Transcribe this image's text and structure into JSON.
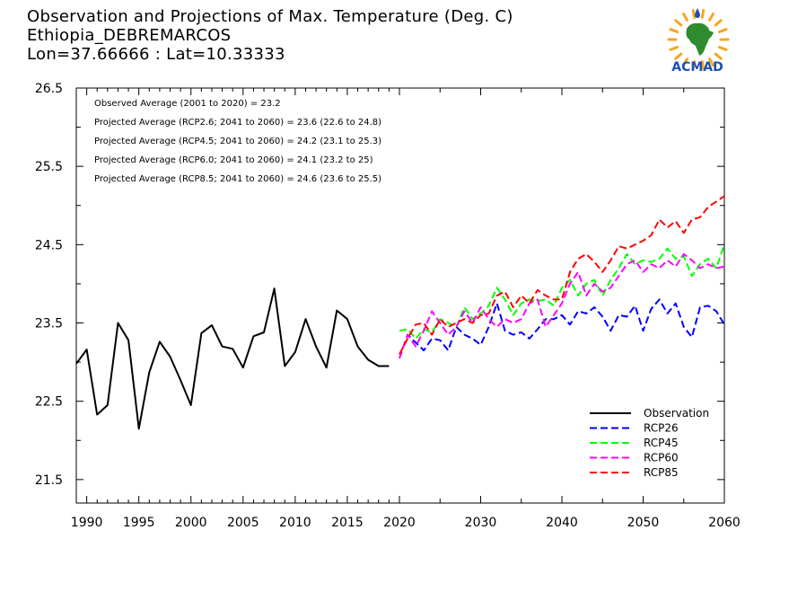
{
  "header": {
    "title_line1": "Observation and Projections of Max. Temperature (Deg. C)",
    "title_line2": "Ethiopia_DEBREMARCOS",
    "title_line3": "Lon=37.66666 : Lat=10.33333",
    "logo_text": "ACMAD"
  },
  "colors": {
    "observation": "#000000",
    "rcp26": "#0000ff",
    "rcp45": "#00ff00",
    "rcp60": "#ff00ff",
    "rcp85": "#ff0000",
    "logo_green": "#2e8b2e",
    "logo_blue": "#1f4fb0",
    "logo_gold": "#f5a623"
  },
  "chart_data": {
    "type": "line",
    "title": "Observation and Projections of Max. Temperature (Deg. C)",
    "xlabel": "",
    "ylabel": "",
    "ylim": [
      21.2,
      26.5
    ],
    "xlim": [
      1989,
      2060
    ],
    "x_axis_note": "two-segment axis: 1989-2020 stretched, 2020-2060 compressed",
    "yticks": [
      21.5,
      22.5,
      23.5,
      24.5,
      25.5,
      26.5
    ],
    "xticks": [
      1990,
      1995,
      2000,
      2005,
      2010,
      2015,
      2020,
      2030,
      2040,
      2050,
      2060
    ],
    "grid": false,
    "legend_position": "bottom-right",
    "annotations": [
      "Observed Average (2001 to 2020) = 23.2",
      "Projected Average (RCP2.6; 2041 to 2060) = 23.6 (22.6 to 24.8)",
      "Projected Average (RCP4.5; 2041 to 2060) = 24.2 (23.1 to 25.3)",
      "Projected Average (RCP6.0; 2041 to 2060) = 24.1 (23.2 to 25)",
      "Projected Average (RCP8.5; 2041 to 2060) = 24.6 (23.6 to 25.5)"
    ],
    "series": [
      {
        "name": "Observation",
        "style": "solid",
        "color": "#000000",
        "x": [
          1989,
          1990,
          1991,
          1992,
          1993,
          1994,
          1995,
          1996,
          1997,
          1998,
          1999,
          2000,
          2001,
          2002,
          2003,
          2004,
          2005,
          2006,
          2007,
          2008,
          2009,
          2010,
          2011,
          2012,
          2013,
          2014,
          2015,
          2016,
          2017,
          2018,
          2019
        ],
        "values": [
          22.98,
          23.16,
          22.33,
          22.45,
          23.5,
          23.28,
          22.15,
          22.87,
          23.26,
          23.07,
          22.77,
          22.45,
          23.37,
          23.47,
          23.2,
          23.17,
          22.93,
          23.33,
          23.38,
          23.94,
          22.95,
          23.13,
          23.55,
          23.2,
          22.93,
          23.66,
          23.55,
          23.2,
          23.03,
          22.95,
          22.95
        ]
      },
      {
        "name": "RCP26",
        "style": "dashed",
        "color": "#0000ff",
        "x": [
          2020,
          2021,
          2022,
          2023,
          2024,
          2025,
          2026,
          2027,
          2028,
          2029,
          2030,
          2031,
          2032,
          2033,
          2034,
          2035,
          2036,
          2037,
          2038,
          2039,
          2040,
          2041,
          2042,
          2043,
          2044,
          2045,
          2046,
          2047,
          2048,
          2049,
          2050,
          2051,
          2052,
          2053,
          2054,
          2055,
          2056,
          2057,
          2058,
          2059,
          2060
        ],
        "values": [
          23.05,
          23.35,
          23.25,
          23.15,
          23.3,
          23.28,
          23.15,
          23.45,
          23.35,
          23.3,
          23.22,
          23.45,
          23.75,
          23.4,
          23.35,
          23.38,
          23.3,
          23.42,
          23.55,
          23.55,
          23.6,
          23.48,
          23.65,
          23.62,
          23.7,
          23.58,
          23.4,
          23.6,
          23.58,
          23.72,
          23.4,
          23.68,
          23.8,
          23.62,
          23.75,
          23.45,
          23.32,
          23.7,
          23.72,
          23.65,
          23.48
        ]
      },
      {
        "name": "RCP45",
        "style": "dashed",
        "color": "#00ff00",
        "x": [
          2020,
          2021,
          2022,
          2023,
          2024,
          2025,
          2026,
          2027,
          2028,
          2029,
          2030,
          2031,
          2032,
          2033,
          2034,
          2035,
          2036,
          2037,
          2038,
          2039,
          2040,
          2041,
          2042,
          2043,
          2044,
          2045,
          2046,
          2047,
          2048,
          2049,
          2050,
          2051,
          2052,
          2053,
          2054,
          2055,
          2056,
          2057,
          2058,
          2059,
          2060
        ],
        "values": [
          23.4,
          23.42,
          23.3,
          23.42,
          23.38,
          23.55,
          23.5,
          23.45,
          23.7,
          23.55,
          23.62,
          23.72,
          23.95,
          23.8,
          23.6,
          23.75,
          23.8,
          23.78,
          23.8,
          23.72,
          23.95,
          24.05,
          23.85,
          24.0,
          24.05,
          23.85,
          24.05,
          24.2,
          24.38,
          24.25,
          24.3,
          24.28,
          24.32,
          24.45,
          24.32,
          24.35,
          24.1,
          24.25,
          24.32,
          24.2,
          24.5
        ]
      },
      {
        "name": "RCP60",
        "style": "dashed",
        "color": "#ff00ff",
        "x": [
          2020,
          2021,
          2022,
          2023,
          2024,
          2025,
          2026,
          2027,
          2028,
          2029,
          2030,
          2031,
          2032,
          2033,
          2034,
          2035,
          2036,
          2037,
          2038,
          2039,
          2040,
          2041,
          2042,
          2043,
          2044,
          2045,
          2046,
          2047,
          2048,
          2049,
          2050,
          2051,
          2052,
          2053,
          2054,
          2055,
          2056,
          2057,
          2058,
          2059,
          2060
        ],
        "values": [
          23.05,
          23.35,
          23.2,
          23.4,
          23.65,
          23.5,
          23.35,
          23.45,
          23.65,
          23.5,
          23.7,
          23.55,
          23.45,
          23.55,
          23.5,
          23.55,
          23.75,
          23.8,
          23.45,
          23.6,
          23.75,
          24.0,
          24.15,
          23.85,
          24.0,
          23.9,
          23.95,
          24.1,
          24.25,
          24.3,
          24.15,
          24.25,
          24.2,
          24.3,
          24.22,
          24.38,
          24.3,
          24.2,
          24.25,
          24.2,
          24.22
        ]
      },
      {
        "name": "RCP85",
        "style": "dashed",
        "color": "#ff0000",
        "x": [
          2020,
          2021,
          2022,
          2023,
          2024,
          2025,
          2026,
          2027,
          2028,
          2029,
          2030,
          2031,
          2032,
          2033,
          2034,
          2035,
          2036,
          2037,
          2038,
          2039,
          2040,
          2041,
          2042,
          2043,
          2044,
          2045,
          2046,
          2047,
          2048,
          2049,
          2050,
          2051,
          2052,
          2053,
          2054,
          2055,
          2056,
          2057,
          2058,
          2059,
          2060
        ],
        "values": [
          23.1,
          23.3,
          23.48,
          23.5,
          23.35,
          23.55,
          23.45,
          23.5,
          23.55,
          23.5,
          23.6,
          23.62,
          23.85,
          23.9,
          23.7,
          23.85,
          23.75,
          23.92,
          23.85,
          23.8,
          23.8,
          24.15,
          24.32,
          24.38,
          24.28,
          24.15,
          24.3,
          24.48,
          24.45,
          24.5,
          24.55,
          24.62,
          24.82,
          24.72,
          24.8,
          24.65,
          24.82,
          24.85,
          24.98,
          25.05,
          25.12
        ]
      }
    ]
  }
}
